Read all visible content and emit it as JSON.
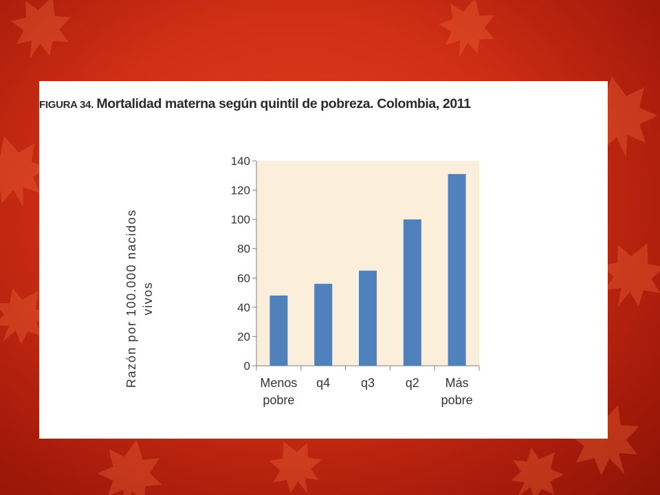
{
  "figure": {
    "prefix": "FIGURA 34.",
    "title": "Mortalidad materna según quintil de pobreza. Colombia, 2011"
  },
  "colors": {
    "bar": "#4f81bd",
    "plot_background": "#fbeedb",
    "slide_background": "#cf2f14"
  },
  "chart_data": {
    "type": "bar",
    "title": "Mortalidad materna según quintil de pobreza. Colombia, 2011",
    "ylabel": [
      "Razón por 100.000 nacidos",
      "vivos"
    ],
    "xlabel": "",
    "categories": [
      [
        "Menos",
        "pobre"
      ],
      [
        "q4"
      ],
      [
        "q3"
      ],
      [
        "q2"
      ],
      [
        "Más",
        "pobre"
      ]
    ],
    "values": [
      48,
      56,
      65,
      100,
      131
    ],
    "ylim": [
      0,
      140
    ],
    "yticks": [
      0,
      20,
      40,
      60,
      80,
      100,
      120,
      140
    ],
    "grid": false,
    "legend": "none"
  }
}
